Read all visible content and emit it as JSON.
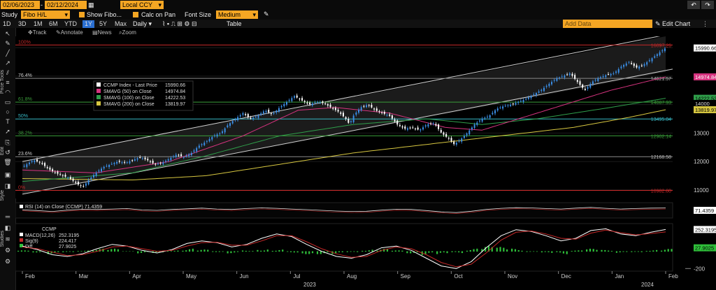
{
  "top": {
    "date_from": "02/06/2023",
    "date_to": "02/12/2024",
    "currency": "Local CCY",
    "study_label": "Study",
    "study_value": "Fibo H/L",
    "show_fibo": "Show Fibo...",
    "calc_on_pan": "Calc on Pan",
    "font_size_label": "Font Size",
    "font_size_value": "Medium",
    "edit_chart": "Edit Chart",
    "add_data_placeholder": "Add Data"
  },
  "periods": [
    "1D",
    "3D",
    "1M",
    "6M",
    "YTD",
    "1Y",
    "5Y",
    "Max"
  ],
  "selected_period": "1Y",
  "frequency": "Daily",
  "table_label": "Table",
  "subtools": [
    "Track",
    "Annotate",
    "News",
    "Zoom"
  ],
  "side_labels": {
    "price_tools": "Price Tools",
    "edit": "Edit",
    "style": "Style",
    "studies": "Studies"
  },
  "colors": {
    "up": "#3a8ee6",
    "down": "#ffffff",
    "sma50": "#d6337f",
    "sma100": "#2f9e4a",
    "sma200": "#d6c640",
    "channel": "#cfcfcf",
    "fib_red": "#c62828",
    "fib_green": "#3a9e3a",
    "fib_cyan": "#36b8c4",
    "accent": "#f5a623"
  },
  "chart_data": [
    {
      "type": "candlestick",
      "title": "CCMP Index - Last Price 15990.66",
      "legend": [
        {
          "name": "CCMP Index - Last Price",
          "value": "15990.66",
          "color": "#ffffff"
        },
        {
          "name": "SMAVG (50)  on Close",
          "value": "14974.84",
          "color": "#d6337f"
        },
        {
          "name": "SMAVG (100)  on Close",
          "value": "14222.53",
          "color": "#2f9e4a"
        },
        {
          "name": "SMAVG (200)  on Close",
          "value": "13819.97",
          "color": "#d6c640"
        }
      ],
      "x_months": [
        "Feb",
        "Mar",
        "Apr",
        "May",
        "Jun",
        "Jul",
        "Aug",
        "Sep",
        "Oct",
        "Nov",
        "Dec",
        "Jan",
        "Feb"
      ],
      "x_years": [
        "2023",
        "2024"
      ],
      "ylim": [
        10700,
        16400
      ],
      "y_ticks": [
        11000,
        12000,
        13000,
        14000,
        15000,
        16000
      ],
      "fib_levels": [
        {
          "pct": "100%",
          "value": "16097.26",
          "v": 16097.26,
          "color": "#c62828"
        },
        {
          "pct": "76.4%",
          "value": "14921.57",
          "v": 14921.57,
          "color": "#8a8a8a"
        },
        {
          "pct": "61.8%",
          "value": "14087.93",
          "v": 14087.93,
          "color": "#3a9e3a"
        },
        {
          "pct": "50%",
          "value": "13495.04",
          "v": 13495.04,
          "color": "#36b8c4"
        },
        {
          "pct": "38.2%",
          "value": "12902.14",
          "v": 12902.14,
          "color": "#3a9e3a"
        },
        {
          "pct": "23.6%",
          "value": "12168.58",
          "v": 12168.58,
          "color": "#8a8a8a"
        },
        {
          "pct": "0%",
          "value": "10982.80",
          "v": 10982.8,
          "color": "#c62828"
        }
      ],
      "right_badges": [
        {
          "label": "15990.66",
          "v": 15990.66,
          "bg": "#ffffff",
          "fg": "#000000"
        },
        {
          "label": "14974.84",
          "v": 14974.84,
          "bg": "#d6337f",
          "fg": "#ffffff"
        },
        {
          "label": "14222.53",
          "v": 14222.53,
          "bg": "#2f9e4a",
          "fg": "#000000"
        },
        {
          "label": "14000",
          "v": 14040,
          "bg": "#000000",
          "fg": "#dddddd"
        },
        {
          "label": "13819.97",
          "v": 13819.97,
          "bg": "#d6c640",
          "fg": "#000000"
        }
      ],
      "close_path": [
        [
          0,
          11800
        ],
        [
          6,
          12050
        ],
        [
          10,
          11950
        ],
        [
          14,
          11750
        ],
        [
          18,
          11600
        ],
        [
          22,
          11500
        ],
        [
          26,
          11400
        ],
        [
          30,
          11200
        ],
        [
          33,
          11100
        ],
        [
          36,
          11350
        ],
        [
          40,
          11600
        ],
        [
          44,
          11800
        ],
        [
          48,
          11900
        ],
        [
          52,
          12000
        ],
        [
          56,
          11950
        ],
        [
          60,
          12050
        ],
        [
          64,
          12150
        ],
        [
          68,
          12050
        ],
        [
          72,
          11900
        ],
        [
          76,
          11950
        ],
        [
          80,
          12100
        ],
        [
          84,
          12250
        ],
        [
          88,
          12150
        ],
        [
          92,
          12300
        ],
        [
          96,
          12550
        ],
        [
          100,
          12700
        ],
        [
          104,
          12900
        ],
        [
          108,
          13000
        ],
        [
          112,
          13300
        ],
        [
          116,
          13500
        ],
        [
          120,
          13700
        ],
        [
          124,
          13500
        ],
        [
          128,
          13600
        ],
        [
          132,
          13800
        ],
        [
          136,
          13650
        ],
        [
          140,
          13900
        ],
        [
          144,
          14100
        ],
        [
          148,
          14300
        ],
        [
          152,
          14150
        ],
        [
          156,
          14000
        ],
        [
          160,
          14100
        ],
        [
          164,
          14050
        ],
        [
          168,
          13900
        ],
        [
          172,
          13750
        ],
        [
          176,
          13500
        ],
        [
          178,
          13300
        ],
        [
          180,
          13600
        ],
        [
          184,
          13900
        ],
        [
          188,
          14000
        ],
        [
          192,
          13800
        ],
        [
          196,
          13700
        ],
        [
          200,
          13600
        ],
        [
          204,
          13300
        ],
        [
          208,
          13150
        ],
        [
          212,
          13200
        ],
        [
          216,
          13100
        ],
        [
          220,
          13300
        ],
        [
          224,
          13350
        ],
        [
          228,
          13000
        ],
        [
          232,
          12800
        ],
        [
          235,
          12600
        ],
        [
          238,
          12750
        ],
        [
          242,
          13000
        ],
        [
          246,
          13300
        ],
        [
          250,
          13500
        ],
        [
          254,
          13600
        ],
        [
          258,
          13850
        ],
        [
          262,
          13950
        ],
        [
          266,
          14000
        ],
        [
          270,
          14100
        ],
        [
          274,
          14200
        ],
        [
          278,
          14350
        ],
        [
          282,
          14500
        ],
        [
          286,
          14700
        ],
        [
          290,
          14900
        ],
        [
          294,
          15000
        ],
        [
          298,
          15100
        ],
        [
          302,
          14800
        ],
        [
          306,
          14500
        ],
        [
          310,
          14800
        ],
        [
          314,
          14950
        ],
        [
          318,
          15050
        ],
        [
          322,
          15100
        ],
        [
          326,
          15350
        ],
        [
          330,
          15500
        ],
        [
          334,
          15300
        ],
        [
          338,
          15400
        ],
        [
          342,
          15600
        ],
        [
          346,
          15800
        ],
        [
          350,
          15990
        ]
      ],
      "sma50_path": [
        [
          0,
          11700
        ],
        [
          40,
          11600
        ],
        [
          80,
          12000
        ],
        [
          120,
          12900
        ],
        [
          150,
          13800
        ],
        [
          170,
          13900
        ],
        [
          200,
          13700
        ],
        [
          230,
          13200
        ],
        [
          250,
          13100
        ],
        [
          270,
          13500
        ],
        [
          300,
          14100
        ],
        [
          320,
          14500
        ],
        [
          350,
          14975
        ]
      ],
      "sma100_path": [
        [
          0,
          11300
        ],
        [
          60,
          11600
        ],
        [
          100,
          12200
        ],
        [
          140,
          12900
        ],
        [
          180,
          13300
        ],
        [
          220,
          13500
        ],
        [
          250,
          13300
        ],
        [
          280,
          13500
        ],
        [
          320,
          13900
        ],
        [
          350,
          14222
        ]
      ],
      "sma200_path": [
        [
          0,
          11400
        ],
        [
          60,
          11350
        ],
        [
          100,
          11500
        ],
        [
          140,
          11900
        ],
        [
          180,
          12300
        ],
        [
          220,
          12600
        ],
        [
          260,
          12900
        ],
        [
          300,
          13200
        ],
        [
          330,
          13550
        ],
        [
          350,
          13820
        ]
      ],
      "channel": {
        "upper": [
          [
            0,
            12000
          ],
          [
            350,
            16400
          ]
        ],
        "lower": [
          [
            0,
            10850
          ],
          [
            350,
            15150
          ]
        ]
      }
    },
    {
      "type": "line",
      "title": "RSI (14)  on Close (CCMP) 71.4359",
      "value": "71.4359",
      "ylim": [
        0,
        100
      ],
      "values": [
        55,
        48,
        40,
        52,
        60,
        58,
        62,
        66,
        54,
        50,
        58,
        64,
        70,
        62,
        58,
        66,
        72,
        68,
        62,
        56,
        50,
        44,
        40,
        42,
        52,
        60,
        58,
        48,
        36,
        30,
        42,
        58,
        68,
        74,
        72,
        66,
        62,
        70,
        76,
        68,
        62,
        66,
        70,
        71.44
      ]
    },
    {
      "type": "line",
      "title": "CCMP",
      "legend": [
        {
          "name": "MACD(12,26)",
          "value": "252.3195",
          "color": "#ffffff"
        },
        {
          "name": "Sig(9)",
          "value": "224.417",
          "color": "#c62828"
        },
        {
          "name": "Diff",
          "value": "27.9025",
          "color": "#2fbf3a"
        }
      ],
      "ylim": [
        -230,
        320
      ],
      "y_ticks": [
        -200
      ],
      "macd": [
        60,
        20,
        -40,
        -60,
        -30,
        30,
        80,
        60,
        10,
        -20,
        20,
        90,
        120,
        100,
        50,
        80,
        150,
        200,
        170,
        80,
        0,
        -60,
        -80,
        -40,
        40,
        60,
        10,
        -80,
        -170,
        -200,
        -120,
        40,
        180,
        250,
        230,
        180,
        120,
        150,
        240,
        260,
        200,
        180,
        220,
        252
      ],
      "signal": [
        50,
        30,
        -10,
        -50,
        -40,
        0,
        50,
        60,
        30,
        0,
        10,
        60,
        100,
        105,
        70,
        70,
        120,
        180,
        180,
        110,
        30,
        -30,
        -70,
        -60,
        10,
        50,
        30,
        -40,
        -130,
        -180,
        -150,
        -20,
        130,
        220,
        235,
        200,
        150,
        140,
        210,
        245,
        215,
        190,
        205,
        224
      ]
    }
  ]
}
